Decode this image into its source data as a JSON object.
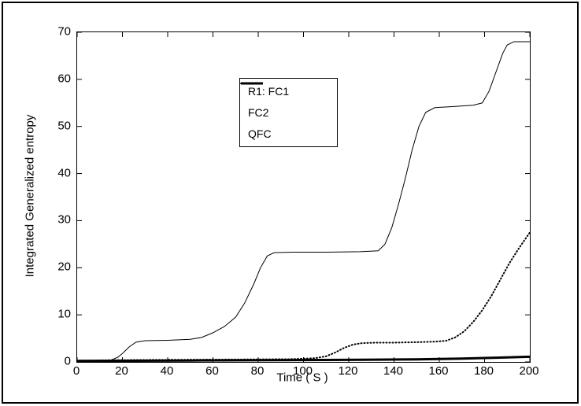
{
  "chart_data": {
    "type": "line",
    "title": "",
    "xlabel": "Time ( S )",
    "ylabel": "Integrated Generalized entropy",
    "xlim": [
      0,
      200
    ],
    "ylim": [
      0,
      70
    ],
    "xticks": [
      0,
      20,
      40,
      60,
      80,
      100,
      120,
      140,
      160,
      180,
      200
    ],
    "yticks": [
      0,
      10,
      20,
      30,
      40,
      50,
      60,
      70
    ],
    "grid": false,
    "background": "#ffffff",
    "line_color": "#000000",
    "legend": {
      "position": "inside-upper-center-left",
      "entries": [
        "R1: FC1",
        "FC2",
        "QFC"
      ]
    },
    "series": [
      {
        "name": "R1: FC1",
        "line_style": "dotted",
        "line_width": 2,
        "color": "#000000",
        "x": [
          0,
          20,
          40,
          60,
          80,
          95,
          105,
          110,
          114,
          118,
          122,
          126,
          132,
          140,
          150,
          158,
          163,
          167,
          171,
          175,
          179,
          183,
          187,
          191,
          195,
          200
        ],
        "y": [
          0.3,
          0.4,
          0.45,
          0.5,
          0.55,
          0.6,
          0.8,
          1.2,
          2.0,
          3.0,
          3.7,
          4.0,
          4.1,
          4.1,
          4.2,
          4.3,
          4.5,
          5.2,
          6.5,
          8.5,
          11.0,
          14.0,
          17.5,
          21.0,
          24.0,
          27.5
        ]
      },
      {
        "name": "FC2",
        "line_style": "solid",
        "line_width": 1,
        "color": "#000000",
        "x": [
          0,
          10,
          15,
          18,
          20,
          23,
          26,
          30,
          40,
          50,
          55,
          60,
          65,
          70,
          74,
          78,
          81,
          84,
          87,
          95,
          110,
          125,
          133,
          136,
          139,
          142,
          145,
          148,
          151,
          154,
          158,
          165,
          175,
          179,
          182,
          185,
          188,
          190,
          193,
          200
        ],
        "y": [
          0,
          0.2,
          0.4,
          1.0,
          1.8,
          3.2,
          4.2,
          4.5,
          4.6,
          4.8,
          5.2,
          6.2,
          7.5,
          9.5,
          12.5,
          16.5,
          20.0,
          22.5,
          23.2,
          23.3,
          23.3,
          23.4,
          23.6,
          25.0,
          28.5,
          33.5,
          39.0,
          45.0,
          50.0,
          53.0,
          54.0,
          54.2,
          54.5,
          55.0,
          57.5,
          61.5,
          65.5,
          67.3,
          68.0,
          68.0
        ]
      },
      {
        "name": "QFC",
        "line_style": "solid",
        "line_width": 3,
        "color": "#000000",
        "x": [
          0,
          25,
          50,
          75,
          100,
          125,
          150,
          170,
          185,
          200
        ],
        "y": [
          0.2,
          0.25,
          0.3,
          0.35,
          0.4,
          0.45,
          0.55,
          0.7,
          0.9,
          1.1
        ]
      }
    ]
  }
}
